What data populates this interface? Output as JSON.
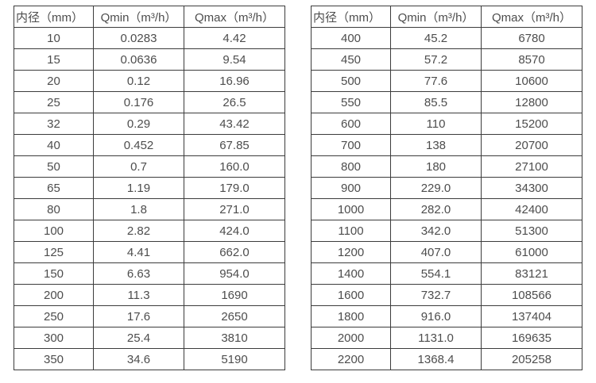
{
  "page": {
    "background_color": "#ffffff",
    "border_color": "#3c3c3c",
    "text_color": "#4d4d4d"
  },
  "tables": [
    {
      "name": "flow-table-small-diameters",
      "headers": [
        "内径（mm）",
        "Qmin（m³/h）",
        "Qmax（m³/h）"
      ],
      "rows": [
        [
          "10",
          "0.0283",
          "4.42"
        ],
        [
          "15",
          "0.0636",
          "9.54"
        ],
        [
          "20",
          "0.12",
          "16.96"
        ],
        [
          "25",
          "0.176",
          "26.5"
        ],
        [
          "32",
          "0.29",
          "43.42"
        ],
        [
          "40",
          "0.452",
          "67.85"
        ],
        [
          "50",
          "0.7",
          "160.0"
        ],
        [
          "65",
          "1.19",
          "179.0"
        ],
        [
          "80",
          "1.8",
          "271.0"
        ],
        [
          "100",
          "2.82",
          "424.0"
        ],
        [
          "125",
          "4.41",
          "662.0"
        ],
        [
          "150",
          "6.63",
          "954.0"
        ],
        [
          "200",
          "11.3",
          "1690"
        ],
        [
          "250",
          "17.6",
          "2650"
        ],
        [
          "300",
          "25.4",
          "3810"
        ],
        [
          "350",
          "34.6",
          "5190"
        ]
      ]
    },
    {
      "name": "flow-table-large-diameters",
      "headers": [
        "内径（mm）",
        "Qmin（m³/h）",
        "Qmax（m³/h）"
      ],
      "rows": [
        [
          "400",
          "45.2",
          "6780"
        ],
        [
          "450",
          "57.2",
          "8570"
        ],
        [
          "500",
          "77.6",
          "10600"
        ],
        [
          "550",
          "85.5",
          "12800"
        ],
        [
          "600",
          "110",
          "15200"
        ],
        [
          "700",
          "138",
          "20700"
        ],
        [
          "800",
          "180",
          "27100"
        ],
        [
          "900",
          "229.0",
          "34300"
        ],
        [
          "1000",
          "282.0",
          "42400"
        ],
        [
          "1100",
          "342.0",
          "51300"
        ],
        [
          "1200",
          "407.0",
          "61000"
        ],
        [
          "1400",
          "554.1",
          "83121"
        ],
        [
          "1600",
          "732.7",
          "108566"
        ],
        [
          "1800",
          "916.0",
          "137404"
        ],
        [
          "2000",
          "1131.0",
          "169635"
        ],
        [
          "2200",
          "1368.4",
          "205258"
        ]
      ]
    }
  ]
}
